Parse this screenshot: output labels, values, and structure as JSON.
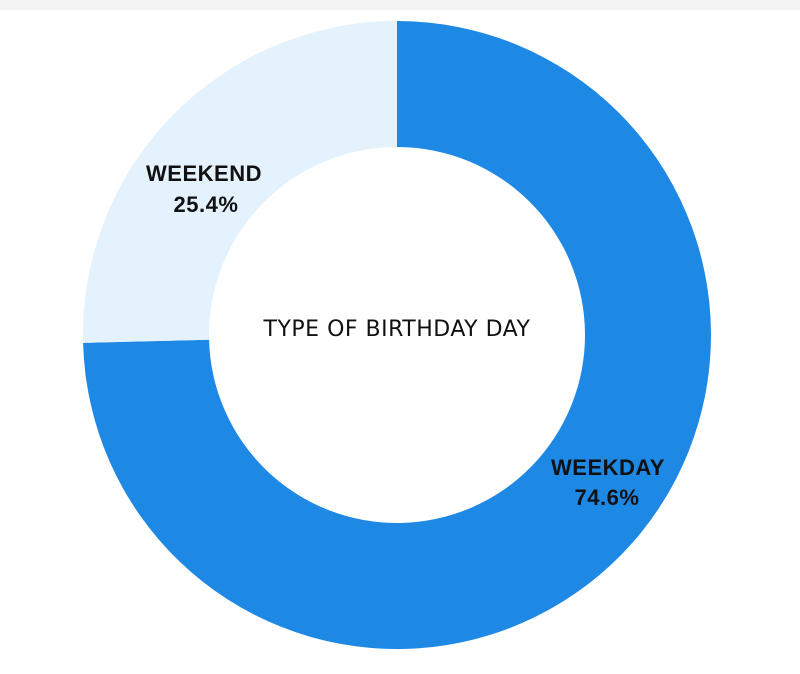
{
  "chart_data": {
    "type": "pie",
    "variant": "donut",
    "center_label": "TYPE OF BIRTHDAY DAY",
    "slices": [
      {
        "name": "WEEKDAY",
        "value": 74.6,
        "label": "74.6%",
        "color": "#1e88e5"
      },
      {
        "name": "WEEKEND",
        "value": 25.4,
        "label": "25.4%",
        "color": "#e3f2fd"
      }
    ],
    "start": "12 o'clock",
    "direction": "clockwise"
  }
}
